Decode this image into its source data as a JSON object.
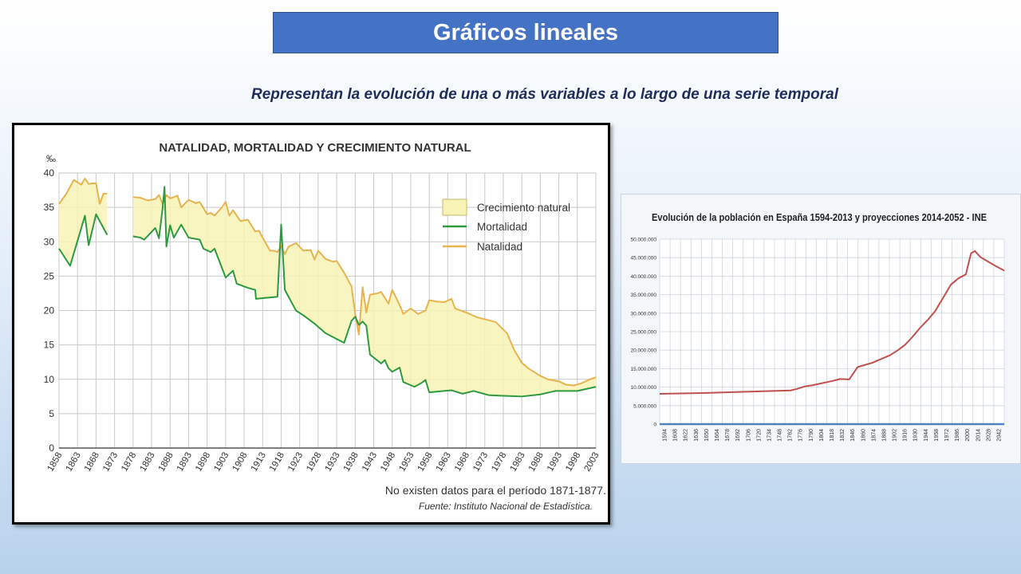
{
  "slide": {
    "title": "Gráficos lineales",
    "subtitle": "Representan la evolución de una o más variables a lo largo de una serie temporal"
  },
  "chart_data": [
    {
      "type": "line",
      "title": "NATALIDAD, MORTALIDAD Y CRECIMIENTO NATURAL",
      "ylabel": "‰",
      "xlim": [
        1858,
        2003
      ],
      "ylim": [
        0,
        40
      ],
      "y_ticks": [
        0,
        5,
        10,
        15,
        20,
        25,
        30,
        35,
        40
      ],
      "x_ticks": [
        1858,
        1863,
        1868,
        1873,
        1878,
        1883,
        1888,
        1893,
        1898,
        1903,
        1908,
        1913,
        1918,
        1923,
        1928,
        1933,
        1938,
        1943,
        1948,
        1953,
        1958,
        1963,
        1968,
        1973,
        1978,
        1983,
        1988,
        1993,
        1998,
        2003
      ],
      "grid": true,
      "legend": {
        "position": "top-right",
        "entries": [
          {
            "label": "Crecimiento natural",
            "color": "#f7f3b5"
          },
          {
            "label": "Mortalidad",
            "color": "#2e9a3f"
          },
          {
            "label": "Natalidad",
            "color": "#e8b34e"
          }
        ]
      },
      "series": [
        {
          "name": "Natalidad",
          "color": "#e8b34e",
          "segments": [
            [
              [
                1858,
                35.5
              ],
              [
                1860,
                37
              ],
              [
                1862,
                39
              ],
              [
                1864,
                38.3
              ],
              [
                1865,
                39.2
              ],
              [
                1866,
                38.4
              ],
              [
                1867,
                38.5
              ],
              [
                1868,
                38.5
              ],
              [
                1869,
                35.5
              ],
              [
                1870,
                37
              ],
              [
                1871,
                37
              ]
            ],
            [
              [
                1878,
                36.5
              ],
              [
                1880,
                36.4
              ],
              [
                1882,
                36
              ],
              [
                1884,
                36.2
              ],
              [
                1885,
                36.8
              ],
              [
                1886,
                35.5
              ],
              [
                1887,
                36.8
              ],
              [
                1888,
                36.3
              ],
              [
                1890,
                36.7
              ],
              [
                1891,
                35
              ],
              [
                1893,
                36.1
              ],
              [
                1895,
                35.6
              ],
              [
                1896,
                35.8
              ],
              [
                1898,
                34
              ],
              [
                1899,
                34.2
              ],
              [
                1900,
                33.8
              ],
              [
                1902,
                35
              ],
              [
                1903,
                35.8
              ],
              [
                1904,
                33.8
              ],
              [
                1905,
                34.6
              ],
              [
                1907,
                33
              ],
              [
                1909,
                33.2
              ],
              [
                1911,
                31.5
              ],
              [
                1912,
                31.6
              ],
              [
                1913,
                30.6
              ],
              [
                1915,
                28.7
              ],
              [
                1916,
                28.7
              ],
              [
                1917,
                28.5
              ],
              [
                1918,
                29.4
              ],
              [
                1919,
                28.2
              ],
              [
                1920,
                29.3
              ],
              [
                1922,
                29.8
              ],
              [
                1924,
                28.7
              ],
              [
                1926,
                28.8
              ],
              [
                1927,
                27.4
              ],
              [
                1928,
                28.7
              ],
              [
                1930,
                27.5
              ],
              [
                1932,
                27.1
              ],
              [
                1933,
                27.2
              ],
              [
                1935,
                25.5
              ],
              [
                1937,
                23.5
              ],
              [
                1938,
                19.5
              ],
              [
                1939,
                16.5
              ],
              [
                1940,
                23.4
              ],
              [
                1941,
                19.7
              ],
              [
                1942,
                22.3
              ],
              [
                1944,
                22.5
              ],
              [
                1945,
                22.7
              ],
              [
                1947,
                21
              ],
              [
                1948,
                23
              ],
              [
                1950,
                20.8
              ],
              [
                1951,
                19.5
              ],
              [
                1953,
                20.3
              ],
              [
                1955,
                19.5
              ],
              [
                1957,
                20
              ],
              [
                1958,
                21.5
              ],
              [
                1960,
                21.3
              ],
              [
                1962,
                21.2
              ],
              [
                1964,
                21.7
              ],
              [
                1965,
                20.3
              ],
              [
                1968,
                19.7
              ],
              [
                1971,
                19
              ],
              [
                1974,
                18.6
              ],
              [
                1976,
                18.3
              ],
              [
                1979,
                16.7
              ],
              [
                1981,
                14.2
              ],
              [
                1983,
                12.4
              ],
              [
                1985,
                11.5
              ],
              [
                1988,
                10.5
              ],
              [
                1990,
                10
              ],
              [
                1993,
                9.7
              ],
              [
                1995,
                9.2
              ],
              [
                1997,
                9.1
              ],
              [
                1999,
                9.4
              ],
              [
                2001,
                9.9
              ],
              [
                2003,
                10.3
              ]
            ]
          ]
        },
        {
          "name": "Mortalidad",
          "color": "#2e9a3f",
          "segments": [
            [
              [
                1858,
                29
              ],
              [
                1861,
                26.5
              ],
              [
                1865,
                33.8
              ],
              [
                1866,
                29.5
              ],
              [
                1868,
                34
              ],
              [
                1871,
                31
              ]
            ],
            [
              [
                1878,
                30.8
              ],
              [
                1880,
                30.6
              ],
              [
                1881,
                30.3
              ],
              [
                1884,
                32
              ],
              [
                1885,
                30.5
              ],
              [
                1886,
                35
              ],
              [
                1886.5,
                38
              ],
              [
                1887,
                29.3
              ],
              [
                1888,
                32.4
              ],
              [
                1889,
                30.6
              ],
              [
                1891,
                32.5
              ],
              [
                1893,
                30.6
              ],
              [
                1896,
                30.3
              ],
              [
                1897,
                29
              ],
              [
                1899,
                28.5
              ],
              [
                1900,
                29
              ],
              [
                1903,
                24.8
              ],
              [
                1905,
                25.8
              ],
              [
                1906,
                23.9
              ],
              [
                1909,
                23.3
              ],
              [
                1911,
                23
              ],
              [
                1911.2,
                21.7
              ],
              [
                1913,
                21.8
              ],
              [
                1917,
                22
              ],
              [
                1918,
                32.5
              ],
              [
                1919,
                23
              ],
              [
                1922,
                20
              ],
              [
                1924,
                19.3
              ],
              [
                1927,
                18.1
              ],
              [
                1930,
                16.7
              ],
              [
                1935,
                15.3
              ],
              [
                1937,
                18.5
              ],
              [
                1938,
                19.1
              ],
              [
                1939,
                17.9
              ],
              [
                1940,
                18.4
              ],
              [
                1941,
                17.8
              ],
              [
                1942,
                13.6
              ],
              [
                1945,
                12.3
              ],
              [
                1946,
                12.8
              ],
              [
                1947,
                11.6
              ],
              [
                1948,
                11.1
              ],
              [
                1950,
                11.7
              ],
              [
                1951,
                9.6
              ],
              [
                1954,
                8.9
              ],
              [
                1956,
                9.5
              ],
              [
                1957,
                9.9
              ],
              [
                1958,
                8.1
              ],
              [
                1960,
                8.2
              ],
              [
                1964,
                8.4
              ],
              [
                1967,
                7.9
              ],
              [
                1970,
                8.3
              ],
              [
                1974,
                7.7
              ],
              [
                1978,
                7.6
              ],
              [
                1983,
                7.5
              ],
              [
                1988,
                7.8
              ],
              [
                1992,
                8.3
              ],
              [
                1998,
                8.3
              ],
              [
                2003,
                8.9
              ]
            ]
          ]
        }
      ],
      "annotations": [
        "No existen datos para el período 1871-1877.",
        "Fuente: Instituto Nacional de Estadística."
      ]
    },
    {
      "type": "line",
      "title": "Evolución de la población en España 1594-2013 y proyecciones 2014-2052 - INE",
      "xlim": [
        1594,
        2052
      ],
      "ylim": [
        0,
        50000000
      ],
      "y_tick_labels": [
        "0",
        "5.000.000",
        "10.000.000",
        "15.000.000",
        "20.000.000",
        "25.000.000",
        "30.000.000",
        "35.000.000",
        "40.000.000",
        "45.000.000",
        "50.000.000"
      ],
      "x_tick_labels": [
        "1594",
        "1608",
        "1622",
        "1636",
        "1650",
        "1664",
        "1678",
        "1692",
        "1706",
        "1720",
        "1734",
        "1748",
        "1762",
        "1776",
        "1790",
        "1804",
        "1818",
        "1832",
        "1846",
        "1860",
        "1874",
        "1888",
        "1902",
        "1916",
        "1930",
        "1944",
        "1958",
        "1972",
        "1986",
        "2000",
        "2014",
        "2028",
        "2042"
      ],
      "grid": true,
      "series": [
        {
          "name": "",
          "color": "#c0504d",
          "x": [
            1594,
            1650,
            1700,
            1750,
            1768,
            1776,
            1787,
            1797,
            1822,
            1834,
            1846,
            1857,
            1860,
            1877,
            1887,
            1900,
            1910,
            1920,
            1930,
            1940,
            1950,
            1960,
            1970,
            1981,
            1991,
            2001,
            2006,
            2008,
            2013,
            2020,
            2030,
            2040,
            2052
          ],
          "y": [
            8200000,
            8400000,
            8700000,
            9000000,
            9100000,
            9500000,
            10200000,
            10500000,
            11600000,
            12200000,
            12100000,
            15400000,
            15600000,
            16600000,
            17500000,
            18600000,
            19900000,
            21400000,
            23600000,
            26000000,
            28100000,
            30500000,
            33900000,
            37700000,
            39400000,
            40500000,
            44700000,
            46200000,
            46800000,
            45200000,
            44000000,
            42800000,
            41500000
          ]
        }
      ]
    }
  ]
}
